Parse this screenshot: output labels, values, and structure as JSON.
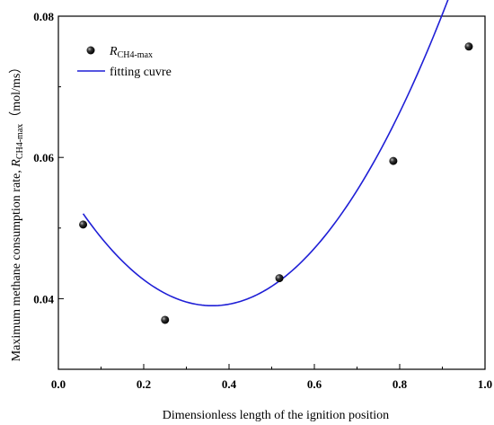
{
  "chart_data": {
    "type": "scatter",
    "xlabel": "Dimensionless length of the ignition position",
    "ylabel_prefix": "Maximum methane consumption rate, ",
    "ylabel_var": "R",
    "ylabel_sub": "CH4-max",
    "ylabel_unit": "（mol/ms）",
    "xlim": [
      0.0,
      1.0
    ],
    "ylim": [
      0.03,
      0.08
    ],
    "x_ticks": [
      "0.0",
      "0.2",
      "0.4",
      "0.6",
      "0.8",
      "1.0"
    ],
    "y_ticks": [
      "0.04",
      "0.06",
      "0.08"
    ],
    "series": [
      {
        "name_var": "R",
        "name_sub": "CH4-max",
        "kind": "scatter",
        "color": "#000000",
        "x": [
          0.058,
          0.25,
          0.518,
          0.785,
          0.962
        ],
        "y": [
          0.0505,
          0.037,
          0.0429,
          0.0595,
          0.0757
        ]
      },
      {
        "name": "fitting cuvre",
        "kind": "line",
        "color": "#1f1fd6",
        "x_range": [
          0.058,
          0.962
        ],
        "poly_coeffs": [
          0.0575,
          -0.1025,
          0.142
        ]
      }
    ]
  }
}
